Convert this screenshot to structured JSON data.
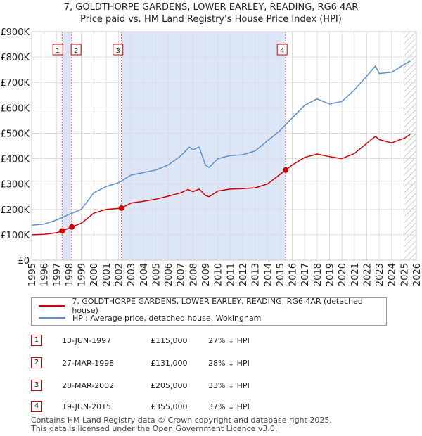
{
  "title": "7, GOLDTHORPE GARDENS, LOWER EARLEY, READING, RG6 4AR",
  "subtitle": "Price paid vs. HM Land Registry's House Price Index (HPI)",
  "colors": {
    "property": "#cc0000",
    "hpi": "#5b8fd0",
    "shade": "#dde6f7",
    "marker_line": "#d05050"
  },
  "chart_data": {
    "type": "line",
    "xlim": [
      1995,
      2026
    ],
    "ylim": [
      0,
      900000
    ],
    "y_ticks": [
      {
        "value": 0,
        "label": "£0"
      },
      {
        "value": 100000,
        "label": "£100K"
      },
      {
        "value": 200000,
        "label": "£200K"
      },
      {
        "value": 300000,
        "label": "£300K"
      },
      {
        "value": 400000,
        "label": "£400K"
      },
      {
        "value": 500000,
        "label": "£500K"
      },
      {
        "value": 600000,
        "label": "£600K"
      },
      {
        "value": 700000,
        "label": "£700K"
      },
      {
        "value": 800000,
        "label": "£800K"
      },
      {
        "value": 900000,
        "label": "£900K"
      }
    ],
    "x_ticks": [
      "1995",
      "1996",
      "1997",
      "1998",
      "1999",
      "2000",
      "2001",
      "2002",
      "2003",
      "2004",
      "2005",
      "2006",
      "2007",
      "2008",
      "2009",
      "2010",
      "2011",
      "2012",
      "2013",
      "2014",
      "2015",
      "2016",
      "2017",
      "2018",
      "2019",
      "2020",
      "2021",
      "2022",
      "2023",
      "2024",
      "2025",
      "2026"
    ],
    "shaded_ranges": [
      [
        1997.45,
        1998.24
      ],
      [
        2002.24,
        2015.47
      ]
    ],
    "hatched_from": 2025.0,
    "series": [
      {
        "name": "7, GOLDTHORPE GARDENS, LOWER EARLEY, READING, RG6 4AR (detached house)",
        "color": "#cc0000",
        "x": [
          1995,
          1996,
          1997,
          1997.45,
          1998.24,
          1999,
          2000,
          2001,
          2002.24,
          2003,
          2004,
          2005,
          2006,
          2007,
          2007.6,
          2008,
          2008.5,
          2009,
          2009.3,
          2010,
          2011,
          2012,
          2013,
          2014,
          2015.47,
          2016,
          2017,
          2018,
          2019,
          2020,
          2021,
          2022,
          2022.7,
          2023,
          2024,
          2025,
          2025.5
        ],
        "values": [
          100000,
          102000,
          108000,
          115000,
          131000,
          145000,
          185000,
          200000,
          205000,
          225000,
          232000,
          240000,
          252000,
          265000,
          278000,
          270000,
          280000,
          255000,
          250000,
          272000,
          280000,
          282000,
          285000,
          300000,
          355000,
          375000,
          405000,
          418000,
          408000,
          400000,
          420000,
          460000,
          488000,
          475000,
          462000,
          480000,
          495000
        ]
      },
      {
        "name": "HPI: Average price, detached house, Wokingham",
        "color": "#5b8fd0",
        "x": [
          1995,
          1996,
          1997,
          1998,
          1999,
          2000,
          2001,
          2002,
          2003,
          2004,
          2005,
          2006,
          2007,
          2007.7,
          2008,
          2008.5,
          2009,
          2009.3,
          2010,
          2011,
          2012,
          2013,
          2014,
          2015,
          2016,
          2017,
          2018,
          2019,
          2020,
          2021,
          2022,
          2022.7,
          2023,
          2024,
          2025,
          2025.5
        ],
        "values": [
          138000,
          142000,
          158000,
          180000,
          200000,
          265000,
          290000,
          305000,
          335000,
          345000,
          355000,
          375000,
          410000,
          445000,
          435000,
          445000,
          375000,
          365000,
          400000,
          412000,
          415000,
          430000,
          470000,
          510000,
          560000,
          610000,
          635000,
          615000,
          625000,
          670000,
          725000,
          765000,
          735000,
          740000,
          770000,
          785000
        ]
      }
    ],
    "sales": [
      {
        "id": "1",
        "x": 1997.45,
        "value": 115000
      },
      {
        "id": "2",
        "x": 1998.24,
        "value": 131000
      },
      {
        "id": "3",
        "x": 2002.24,
        "value": 205000
      },
      {
        "id": "4",
        "x": 2015.47,
        "value": 355000
      }
    ]
  },
  "legend": {
    "property_label": "7, GOLDTHORPE GARDENS, LOWER EARLEY, READING, RG6 4AR (detached house)",
    "hpi_label": "HPI: Average price, detached house, Wokingham"
  },
  "transactions": [
    {
      "num": "1",
      "date": "13-JUN-1997",
      "price": "£115,000",
      "hpi": "27% ↓ HPI"
    },
    {
      "num": "2",
      "date": "27-MAR-1998",
      "price": "£131,000",
      "hpi": "28% ↓ HPI"
    },
    {
      "num": "3",
      "date": "28-MAR-2002",
      "price": "£205,000",
      "hpi": "33% ↓ HPI"
    },
    {
      "num": "4",
      "date": "19-JUN-2015",
      "price": "£355,000",
      "hpi": "37% ↓ HPI"
    }
  ],
  "footer": {
    "line1": "Contains HM Land Registry data © Crown copyright and database right 2025.",
    "line2": "This data is licensed under the Open Government Licence v3.0."
  }
}
